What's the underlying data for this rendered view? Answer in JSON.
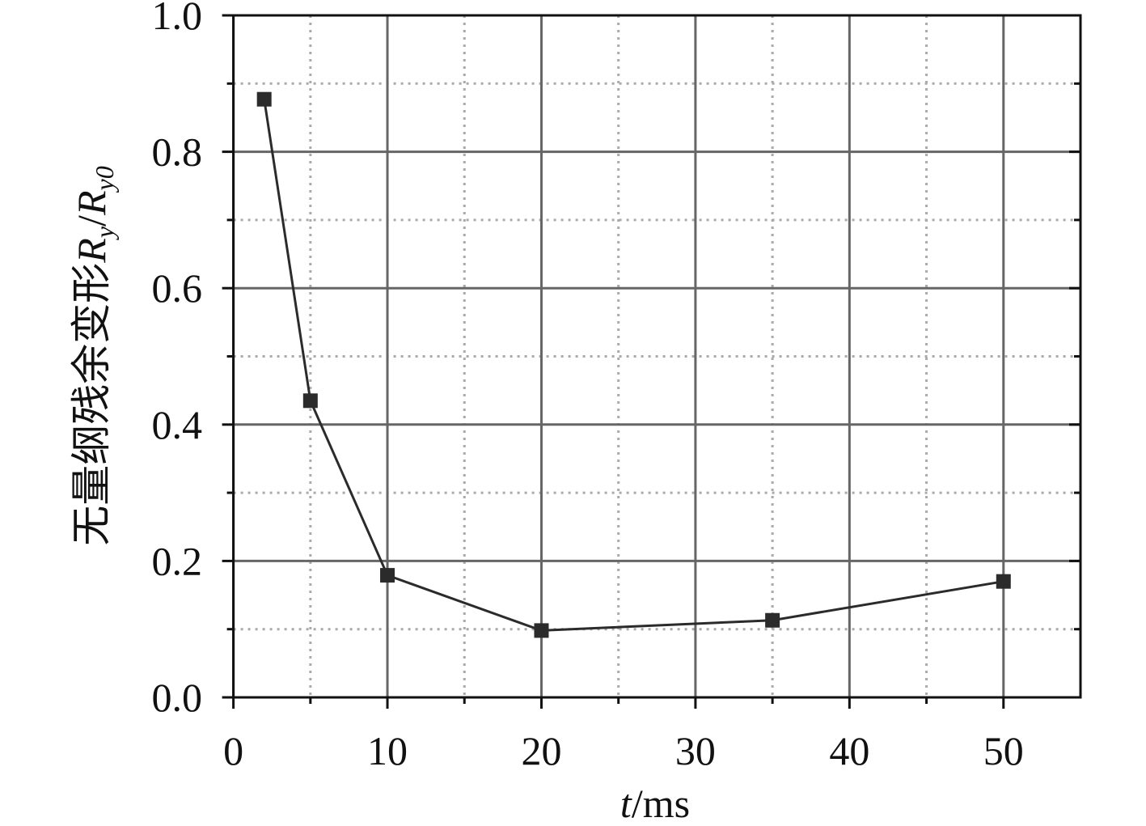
{
  "chart_data": {
    "type": "line",
    "xlabel": [
      "t",
      "/ms"
    ],
    "ylabel": [
      "无量纲残余变形",
      "R",
      "y",
      "/",
      "R",
      "y0"
    ],
    "x": [
      2,
      5,
      10,
      20,
      35,
      50
    ],
    "series": [
      {
        "color": "#2b2b2b",
        "values": [
          0.877,
          0.435,
          0.179,
          0.098,
          0.113,
          0.17
        ]
      }
    ],
    "xlim": [
      0,
      55
    ],
    "ylim": [
      0,
      1.0
    ],
    "xticks": [
      0,
      10,
      20,
      30,
      40,
      50
    ],
    "yticks": [
      {
        "value": 0,
        "label": "0.0"
      },
      0.2,
      0.4,
      0.6,
      0.8,
      {
        "value": 1,
        "label": "1.0"
      }
    ],
    "xminorticks": [
      5,
      15,
      25,
      35,
      45
    ],
    "yminorticks": [
      0.1,
      0.3,
      0.5,
      0.7,
      0.9
    ],
    "grid": true
  }
}
